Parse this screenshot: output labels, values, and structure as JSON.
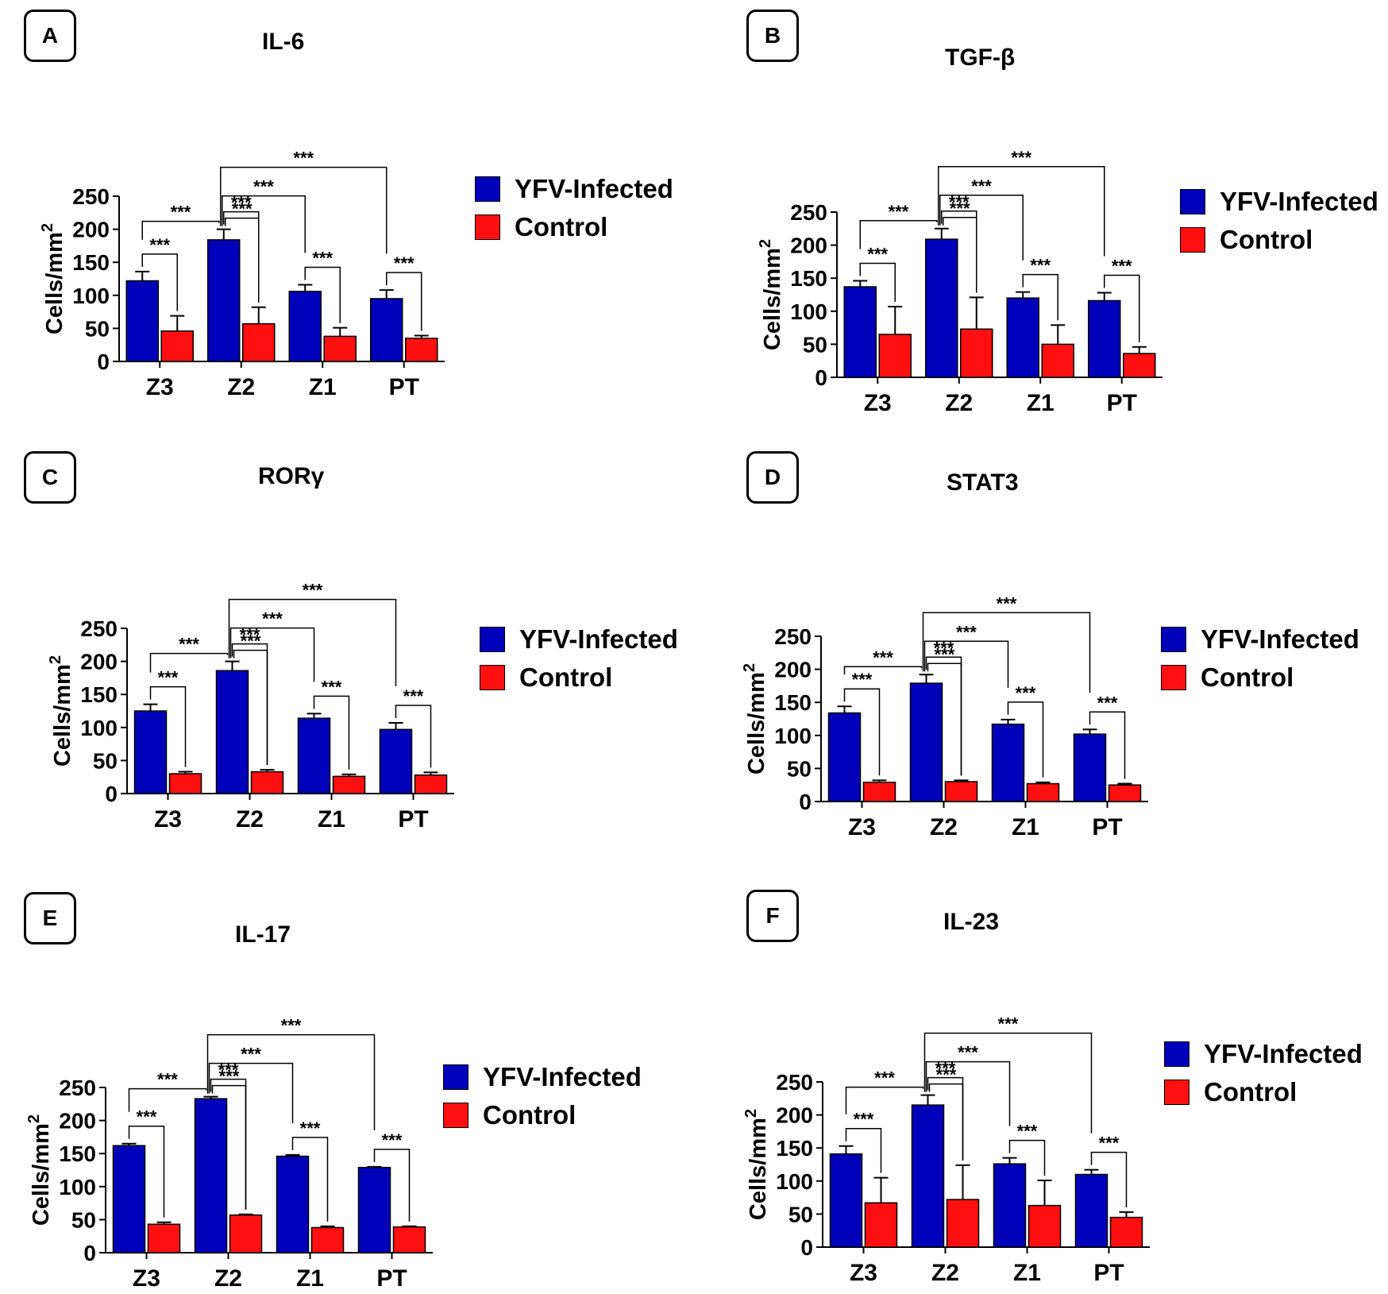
{
  "legend": {
    "infected": "YFV-Infected",
    "control": "Control"
  },
  "colors": {
    "infected": "#0000bb",
    "control": "#ff1010"
  },
  "chart_data": [
    {
      "panel": "A",
      "title": "IL-6",
      "type": "bar",
      "ylabel_main": "Cells/mm",
      "ylabel_sup": "2",
      "categories": [
        "Z3",
        "Z2",
        "Z1",
        "PT"
      ],
      "yticks": [
        0,
        50,
        100,
        150,
        200,
        250
      ],
      "ylim": [
        0,
        250
      ],
      "series": [
        {
          "name": "YFV-Infected",
          "values": [
            122,
            184,
            106,
            95
          ],
          "errors": [
            14,
            16,
            10,
            13
          ]
        },
        {
          "name": "Control",
          "values": [
            46,
            57,
            38,
            35
          ],
          "errors": [
            23,
            25,
            13,
            4
          ]
        }
      ],
      "significance": "***"
    },
    {
      "panel": "B",
      "title": "TGF-β",
      "type": "bar",
      "ylabel_main": "Cells/mm",
      "ylabel_sup": "2",
      "categories": [
        "Z3",
        "Z2",
        "Z1",
        "PT"
      ],
      "yticks": [
        0,
        50,
        100,
        150,
        200,
        250
      ],
      "ylim": [
        0,
        250
      ],
      "series": [
        {
          "name": "YFV-Infected",
          "values": [
            137,
            209,
            120,
            116
          ],
          "errors": [
            9,
            16,
            9,
            12
          ]
        },
        {
          "name": "Control",
          "values": [
            65,
            73,
            50,
            36
          ],
          "errors": [
            42,
            48,
            29,
            10
          ]
        }
      ],
      "significance": "***"
    },
    {
      "panel": "C",
      "title": "RORγ",
      "type": "bar",
      "ylabel_main": "Cells/mm",
      "ylabel_sup": "2",
      "categories": [
        "Z3",
        "Z2",
        "Z1",
        "PT"
      ],
      "yticks": [
        0,
        50,
        100,
        150,
        200,
        250
      ],
      "ylim": [
        0,
        250
      ],
      "series": [
        {
          "name": "YFV-Infected",
          "values": [
            125,
            186,
            114,
            97
          ],
          "errors": [
            10,
            14,
            7,
            10
          ]
        },
        {
          "name": "Control",
          "values": [
            30,
            33,
            26,
            28
          ],
          "errors": [
            3,
            3,
            3,
            4
          ]
        }
      ],
      "significance": "***"
    },
    {
      "panel": "D",
      "title": "STAT3",
      "type": "bar",
      "ylabel_main": "Cells/mm",
      "ylabel_sup": "2",
      "categories": [
        "Z3",
        "Z2",
        "Z1",
        "PT"
      ],
      "yticks": [
        0,
        50,
        100,
        150,
        200,
        250
      ],
      "ylim": [
        0,
        250
      ],
      "series": [
        {
          "name": "YFV-Infected",
          "values": [
            134,
            179,
            117,
            102
          ],
          "errors": [
            10,
            13,
            7,
            7
          ]
        },
        {
          "name": "Control",
          "values": [
            29,
            30,
            27,
            25
          ],
          "errors": [
            3,
            2,
            2,
            2
          ]
        }
      ],
      "significance": "***"
    },
    {
      "panel": "E",
      "title": "IL-17",
      "type": "bar",
      "ylabel_main": "Cells/mm",
      "ylabel_sup": "2",
      "categories": [
        "Z3",
        "Z2",
        "Z1",
        "PT"
      ],
      "yticks": [
        0,
        50,
        100,
        150,
        200,
        250
      ],
      "ylim": [
        0,
        250
      ],
      "series": [
        {
          "name": "YFV-Infected",
          "values": [
            162,
            233,
            146,
            129
          ],
          "errors": [
            3,
            3,
            2,
            1
          ]
        },
        {
          "name": "Control",
          "values": [
            43,
            57,
            38,
            39
          ],
          "errors": [
            3,
            1,
            2,
            1
          ]
        }
      ],
      "significance": "***"
    },
    {
      "panel": "F",
      "title": "IL-23",
      "type": "bar",
      "ylabel_main": "Cells/mm",
      "ylabel_sup": "2",
      "categories": [
        "Z3",
        "Z2",
        "Z1",
        "PT"
      ],
      "yticks": [
        0,
        50,
        100,
        150,
        200,
        250
      ],
      "ylim": [
        0,
        250
      ],
      "series": [
        {
          "name": "YFV-Infected",
          "values": [
            141,
            215,
            126,
            110
          ],
          "errors": [
            12,
            15,
            9,
            7
          ]
        },
        {
          "name": "Control",
          "values": [
            67,
            72,
            63,
            45
          ],
          "errors": [
            38,
            52,
            38,
            8
          ]
        }
      ],
      "significance": "***"
    }
  ]
}
